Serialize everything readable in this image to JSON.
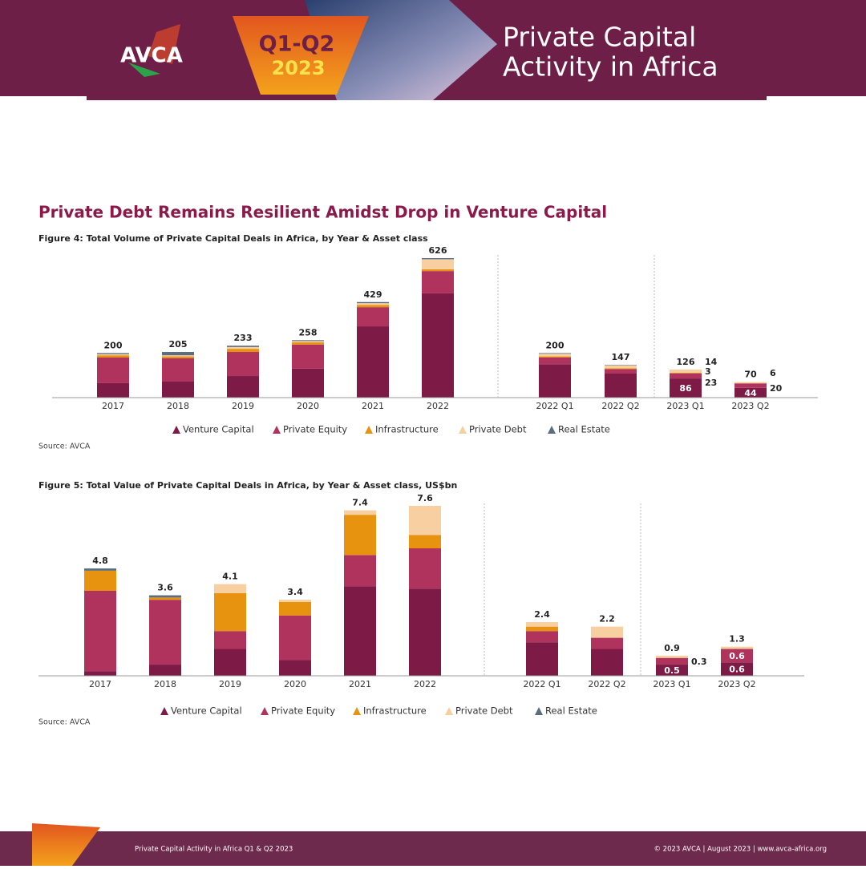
{
  "header": {
    "logo": "AVCA",
    "period": "Q1-Q2",
    "year": "2023",
    "title_lines": [
      "Private Capital",
      "Activity in Africa"
    ]
  },
  "headline": "Private Debt Remains Resilient Amidst Drop in Venture Capital",
  "chart_data": [
    {
      "type": "bar",
      "stacked": true,
      "title": "Figure 4: Total Volume of Private Capital Deals in Africa, by Year & Asset class",
      "categories": [
        "2017",
        "2018",
        "2019",
        "2020",
        "2021",
        "2022",
        "2022 Q1",
        "2022 Q2",
        "2023 Q1",
        "2023 Q2"
      ],
      "series": [
        {
          "name": "Venture Capital",
          "color": "#7d1a45",
          "values": [
            65,
            72,
            97,
            130,
            320,
            468,
            150,
            108,
            86,
            44
          ]
        },
        {
          "name": "Private Equity",
          "color": "#b0335e",
          "values": [
            115,
            105,
            108,
            108,
            86,
            100,
            30,
            20,
            23,
            20
          ]
        },
        {
          "name": "Infrastructure",
          "color": "#e8930f",
          "values": [
            10,
            8,
            14,
            10,
            10,
            8,
            5,
            4,
            3,
            0
          ]
        },
        {
          "name": "Private Debt",
          "color": "#f7cfa0",
          "values": [
            5,
            5,
            8,
            6,
            8,
            45,
            12,
            13,
            14,
            6
          ]
        },
        {
          "name": "Real Estate",
          "color": "#5a6e80",
          "values": [
            5,
            15,
            6,
            4,
            5,
            5,
            3,
            2,
            0,
            0
          ]
        }
      ],
      "totals": [
        200,
        205,
        233,
        258,
        429,
        626,
        200,
        147,
        126,
        70
      ],
      "source": "Source: AVCA"
    },
    {
      "type": "bar",
      "stacked": true,
      "title": "Figure 5: Total Value of Private Capital Deals in Africa, by Year & Asset class, US$bn",
      "categories": [
        "2017",
        "2018",
        "2019",
        "2020",
        "2021",
        "2022",
        "2022 Q1",
        "2022 Q2",
        "2023 Q1",
        "2023 Q2"
      ],
      "series": [
        {
          "name": "Venture Capital",
          "color": "#7d1a45",
          "values": [
            0.2,
            0.5,
            1.2,
            0.7,
            4.0,
            3.9,
            1.5,
            1.2,
            0.5,
            0.6
          ]
        },
        {
          "name": "Private Equity",
          "color": "#b0335e",
          "values": [
            3.6,
            2.9,
            0.8,
            2.0,
            1.4,
            1.8,
            0.5,
            0.5,
            0.3,
            0.6
          ]
        },
        {
          "name": "Infrastructure",
          "color": "#e8930f",
          "values": [
            0.9,
            0.1,
            1.7,
            0.6,
            1.8,
            0.6,
            0.2,
            0,
            0,
            0
          ]
        },
        {
          "name": "Private Debt",
          "color": "#f7cfa0",
          "values": [
            0,
            0,
            0.4,
            0.1,
            0.2,
            1.3,
            0.2,
            0.5,
            0.1,
            0.1
          ]
        },
        {
          "name": "Real Estate",
          "color": "#5a6e80",
          "values": [
            0.1,
            0.1,
            0,
            0,
            0,
            0,
            0,
            0,
            0,
            0
          ]
        }
      ],
      "totals": [
        4.8,
        3.6,
        4.1,
        3.4,
        7.4,
        7.6,
        2.4,
        2.2,
        0.9,
        1.3
      ],
      "source": "Source: AVCA"
    }
  ],
  "footer": {
    "left": "Private Capital Activity in Africa Q1 & Q2 2023",
    "right": "© 2023 AVCA  |  August 2023  |  www.avca-africa.org"
  }
}
